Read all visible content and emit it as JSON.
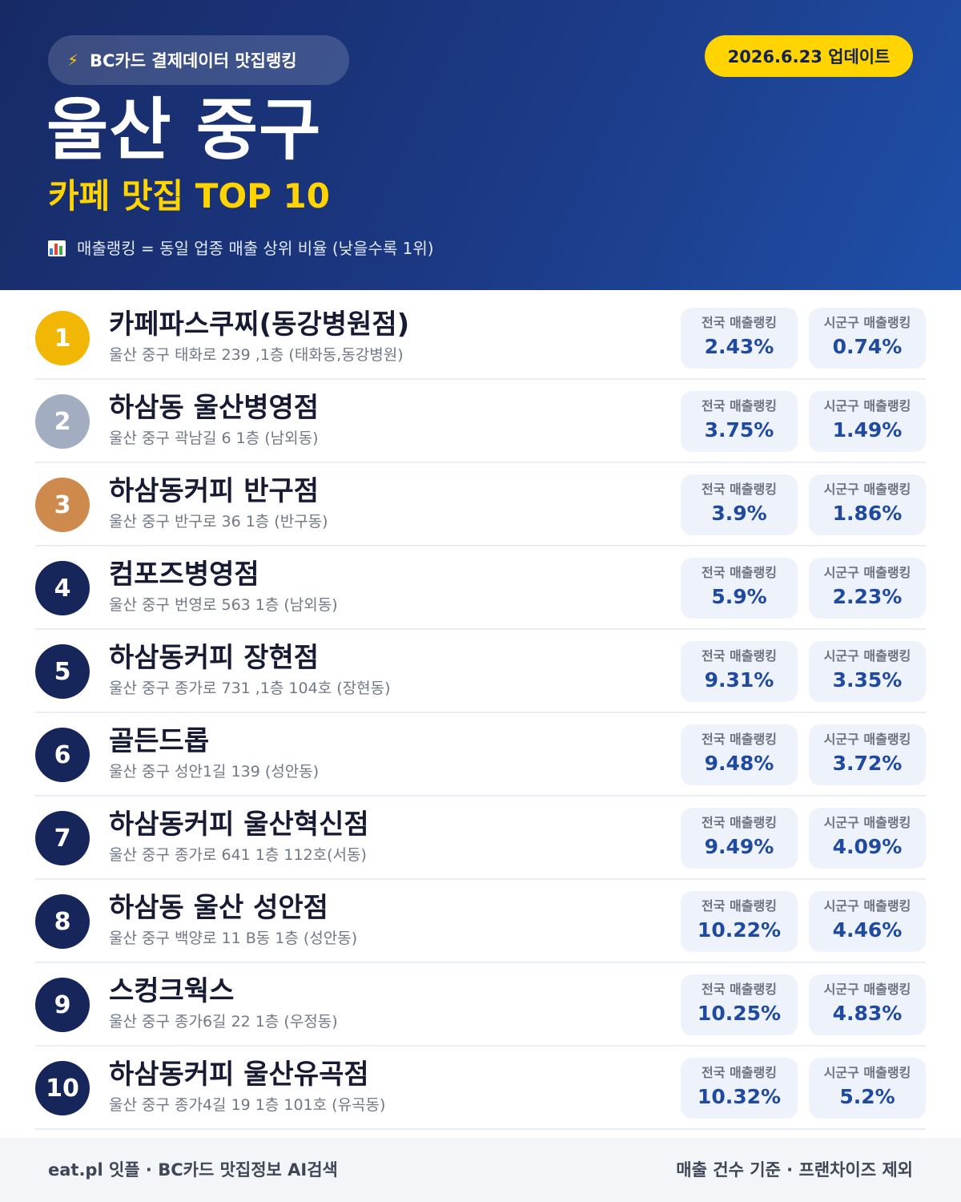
{
  "header": {
    "source_label": "BC카드 결제데이터 맛집랭킹",
    "update_label": "2026.6.23 업데이트",
    "title": "울산 중구",
    "subtitle": "카페 맛집 TOP 10",
    "note": "매출랭킹 = 동일 업종 매출 상위 비율 (낮을수록 1위)",
    "icons": {
      "source": "lightning-icon",
      "note": "bar-chart-icon"
    }
  },
  "labels": {
    "national": "전국 매출랭킹",
    "regional": "시군구 매출랭킹"
  },
  "colors": {
    "gold": "#f2b705",
    "silver": "#a3adc2",
    "bronze": "#cd8a4c",
    "navy": "#17265a",
    "accent": "#ffd400"
  },
  "items": [
    {
      "rank": "1",
      "name": "카페파스쿠찌(동강병원점)",
      "address": "울산 중구 태화로 239 ,1층 (태화동,동강병원)",
      "national": "2.43%",
      "regional": "0.74%"
    },
    {
      "rank": "2",
      "name": "하삼동 울산병영점",
      "address": "울산 중구 곽남길 6 1층 (남외동)",
      "national": "3.75%",
      "regional": "1.49%"
    },
    {
      "rank": "3",
      "name": "하삼동커피 반구점",
      "address": "울산 중구 반구로 36 1층 (반구동)",
      "national": "3.9%",
      "regional": "1.86%"
    },
    {
      "rank": "4",
      "name": "컴포즈병영점",
      "address": "울산 중구 번영로 563 1층 (남외동)",
      "national": "5.9%",
      "regional": "2.23%"
    },
    {
      "rank": "5",
      "name": "하삼동커피 장현점",
      "address": "울산 중구 종가로 731 ,1층 104호 (장현동)",
      "national": "9.31%",
      "regional": "3.35%"
    },
    {
      "rank": "6",
      "name": "골든드롭",
      "address": "울산 중구 성안1길 139 (성안동)",
      "national": "9.48%",
      "regional": "3.72%"
    },
    {
      "rank": "7",
      "name": "하삼동커피 울산혁신점",
      "address": "울산 중구 종가로 641 1층 112호(서동)",
      "national": "9.49%",
      "regional": "4.09%"
    },
    {
      "rank": "8",
      "name": "하삼동 울산 성안점",
      "address": "울산 중구 백양로 11 B동 1층 (성안동)",
      "national": "10.22%",
      "regional": "4.46%"
    },
    {
      "rank": "9",
      "name": "스컹크웍스",
      "address": "울산 중구 종가6길 22 1층 (우정동)",
      "national": "10.25%",
      "regional": "4.83%"
    },
    {
      "rank": "10",
      "name": "하삼동커피 울산유곡점",
      "address": "울산 중구 종가4길 19 1층 101호 (유곡동)",
      "national": "10.32%",
      "regional": "5.2%"
    }
  ],
  "footer": {
    "left": "eat.pl 잇플 · BC카드 맛집정보 AI검색",
    "right": "매출 건수 기준 · 프랜차이즈 제외"
  }
}
